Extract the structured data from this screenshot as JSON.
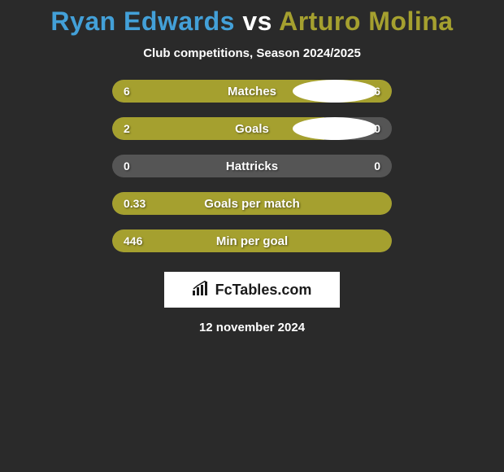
{
  "title": {
    "player1": "Ryan Edwards",
    "vs": "vs",
    "player2": "Arturo Molina",
    "color_p1": "#43a0d8",
    "color_vs": "#ffffff",
    "color_p2": "#a5a02f"
  },
  "subtitle": "Club competitions, Season 2024/2025",
  "bar_color": "#a5a02f",
  "bar_bg_color": "#555555",
  "background_color": "#2a2a2a",
  "ellipse_color": "#ffffff",
  "stats": [
    {
      "label": "Matches",
      "left_value": "6",
      "right_value": "6",
      "left_pct": 50,
      "right_pct": 50,
      "show_ellipses": true
    },
    {
      "label": "Goals",
      "left_value": "2",
      "right_value": "0",
      "left_pct": 76,
      "right_pct": 0,
      "show_ellipses": true
    },
    {
      "label": "Hattricks",
      "left_value": "0",
      "right_value": "0",
      "left_pct": 0,
      "right_pct": 0,
      "show_ellipses": false
    },
    {
      "label": "Goals per match",
      "left_value": "0.33",
      "right_value": "",
      "left_pct": 100,
      "right_pct": 0,
      "show_ellipses": false
    },
    {
      "label": "Min per goal",
      "left_value": "446",
      "right_value": "",
      "left_pct": 100,
      "right_pct": 0,
      "show_ellipses": false
    }
  ],
  "branding": "FcTables.com",
  "date": "12 november 2024"
}
